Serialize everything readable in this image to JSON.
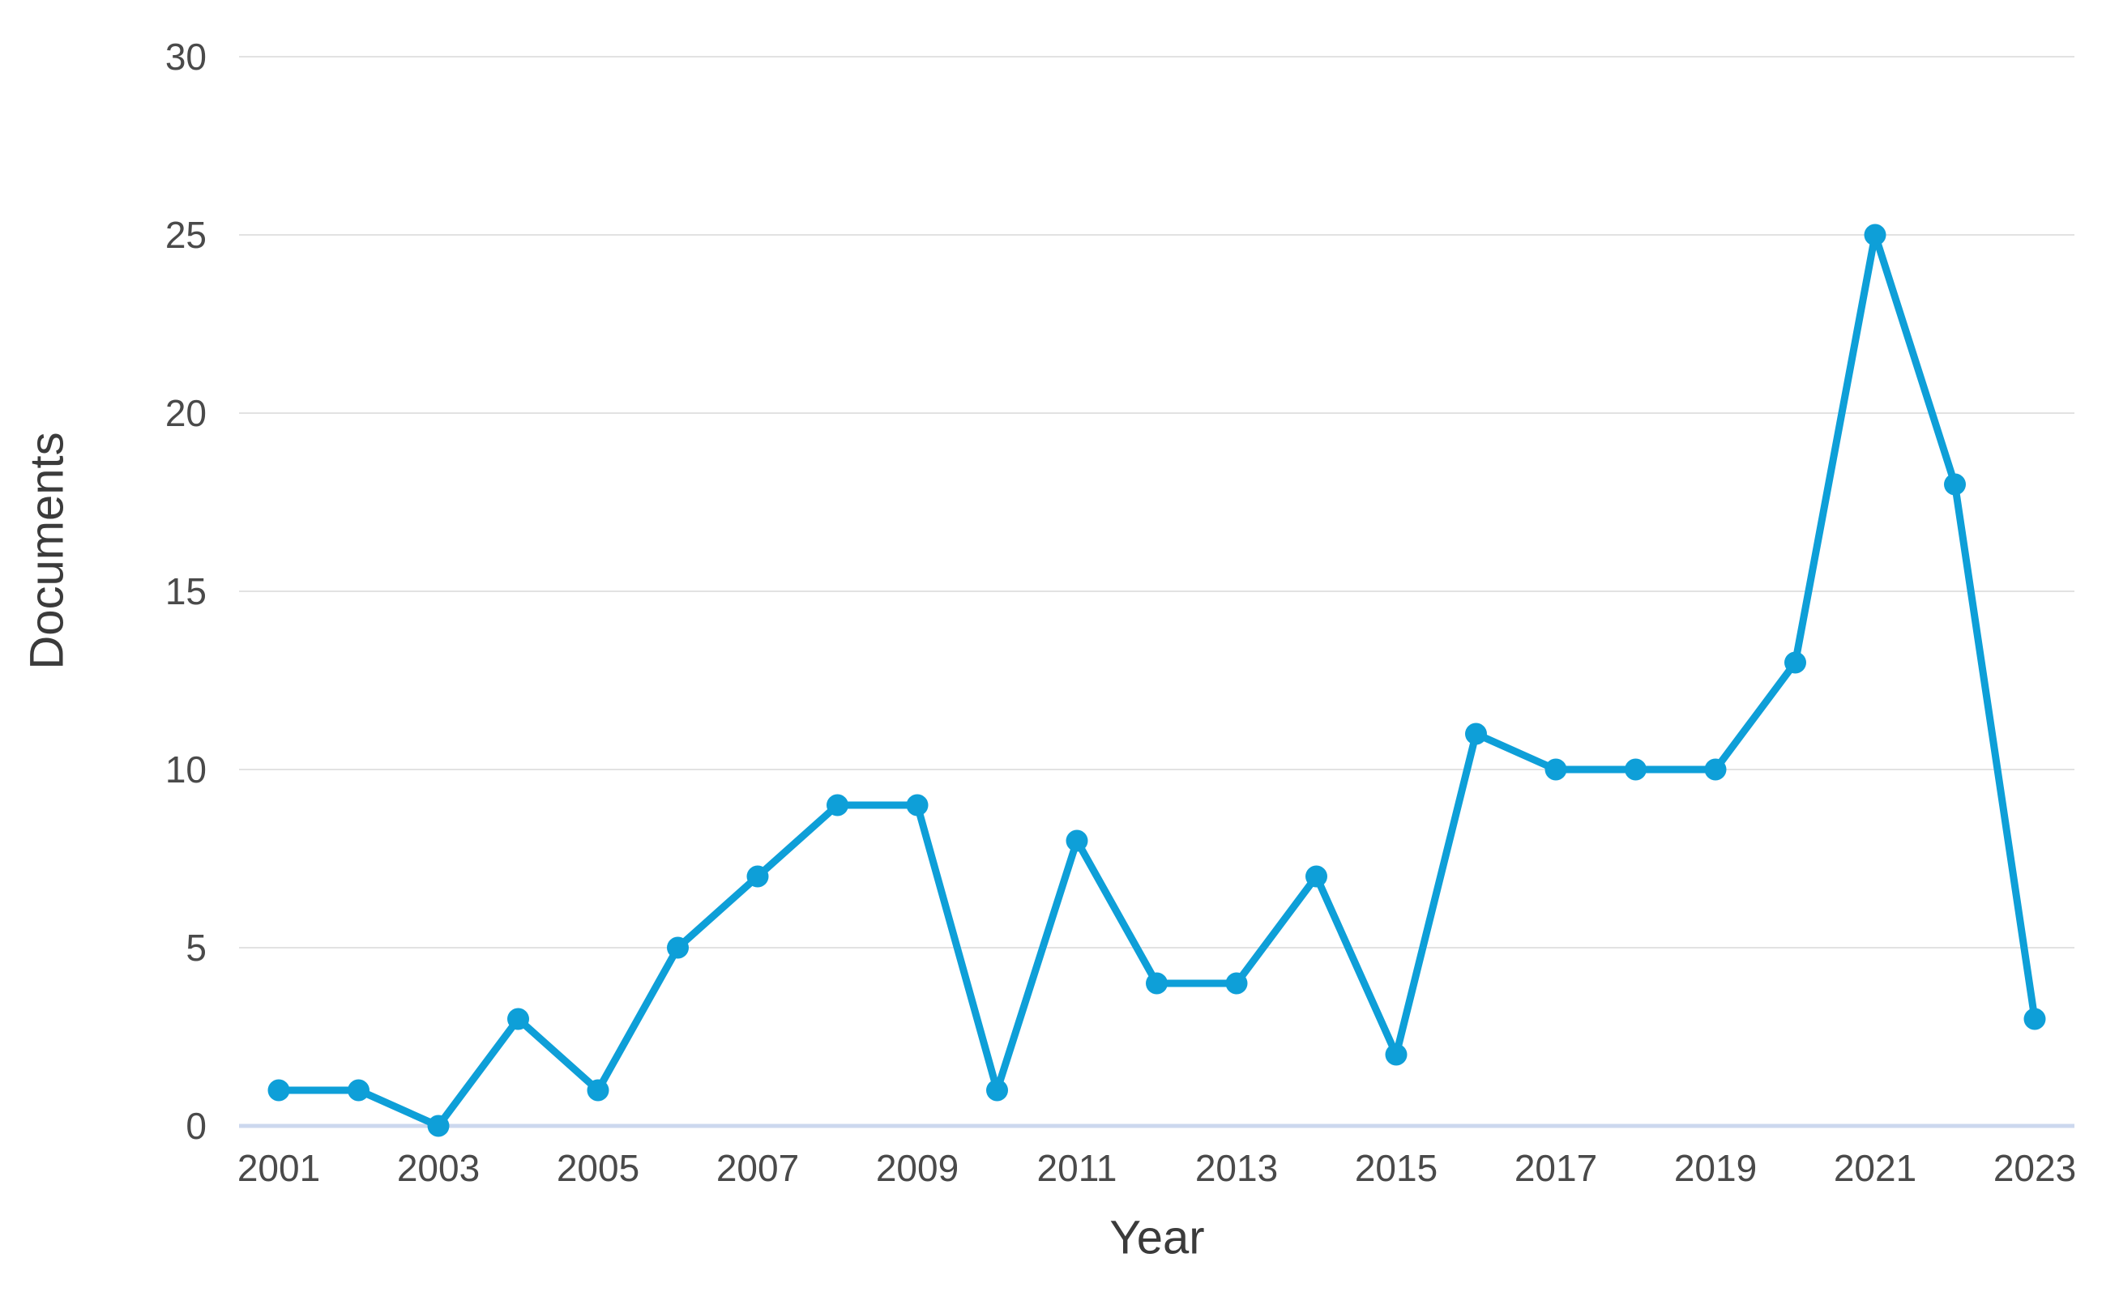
{
  "chart": {
    "y_axis_title": "Documents",
    "x_axis_title": "Year"
  },
  "chart_data": {
    "type": "line",
    "title": "",
    "xlabel": "Year",
    "ylabel": "Documents",
    "x": [
      2001,
      2002,
      2003,
      2004,
      2005,
      2006,
      2007,
      2008,
      2009,
      2010,
      2011,
      2012,
      2013,
      2014,
      2015,
      2016,
      2017,
      2018,
      2019,
      2020,
      2021,
      2022,
      2023
    ],
    "series": [
      {
        "name": "Documents",
        "values": [
          1,
          1,
          0,
          3,
          1,
          5,
          7,
          9,
          9,
          1,
          8,
          4,
          4,
          7,
          2,
          11,
          10,
          10,
          10,
          13,
          25,
          18,
          3
        ]
      }
    ],
    "ylim": [
      0,
      30
    ],
    "y_ticks": [
      0,
      5,
      10,
      15,
      20,
      25,
      30
    ],
    "x_tick_labels": [
      "2001",
      "2003",
      "2005",
      "2007",
      "2009",
      "2011",
      "2013",
      "2015",
      "2017",
      "2019",
      "2021",
      "2023"
    ],
    "grid": "horizontal",
    "legend_position": "none",
    "marker": "circle",
    "colors": {
      "line": "#0e9fd8",
      "marker": "#0e9fd8",
      "gridline": "#e2e2e2",
      "zero_line": "#ccd8ee",
      "tick_label": "#4a4a4a",
      "axis_title": "#3b3b3b"
    }
  }
}
